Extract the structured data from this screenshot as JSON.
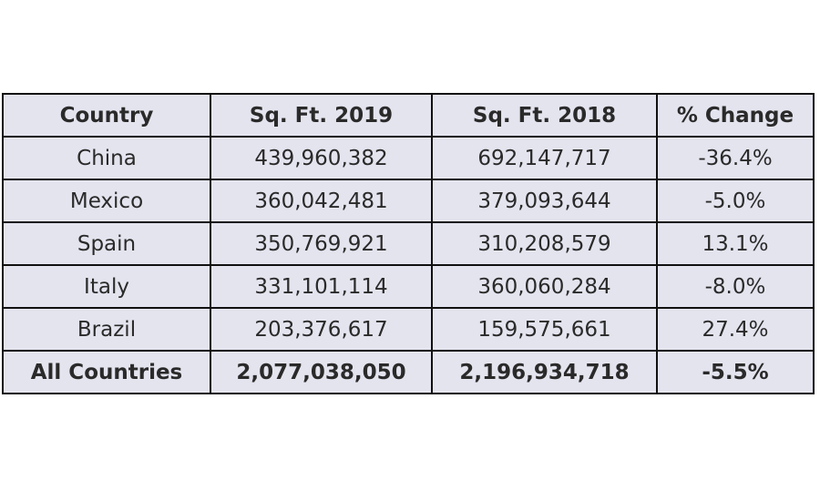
{
  "table": {
    "headers": [
      "Country",
      "Sq. Ft. 2019",
      "Sq. Ft. 2018",
      "% Change"
    ],
    "rows": [
      [
        "China",
        "439,960,382",
        "692,147,717",
        "-36.4%"
      ],
      [
        "Mexico",
        "360,042,481",
        "379,093,644",
        "-5.0%"
      ],
      [
        "Spain",
        "350,769,921",
        "310,208,579",
        "13.1%"
      ],
      [
        "Italy",
        "331,101,114",
        "360,060,284",
        "-8.0%"
      ],
      [
        "Brazil",
        "203,376,617",
        "159,575,661",
        "27.4%"
      ]
    ],
    "total": [
      "All Countries",
      "2,077,038,050",
      "2,196,934,718",
      "-5.5%"
    ]
  }
}
